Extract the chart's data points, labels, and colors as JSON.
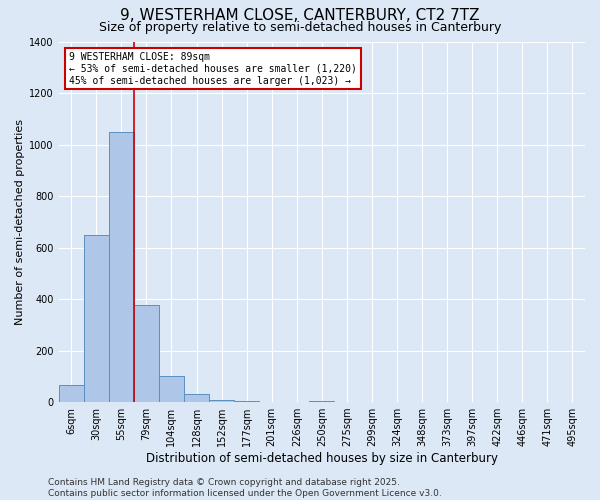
{
  "title": "9, WESTERHAM CLOSE, CANTERBURY, CT2 7TZ",
  "subtitle": "Size of property relative to semi-detached houses in Canterbury",
  "xlabel": "Distribution of semi-detached houses by size in Canterbury",
  "ylabel": "Number of semi-detached properties",
  "categories": [
    "6sqm",
    "30sqm",
    "55sqm",
    "79sqm",
    "104sqm",
    "128sqm",
    "152sqm",
    "177sqm",
    "201sqm",
    "226sqm",
    "250sqm",
    "275sqm",
    "299sqm",
    "324sqm",
    "348sqm",
    "373sqm",
    "397sqm",
    "422sqm",
    "446sqm",
    "471sqm",
    "495sqm"
  ],
  "values": [
    65,
    650,
    1050,
    375,
    100,
    30,
    10,
    5,
    0,
    0,
    5,
    0,
    0,
    0,
    0,
    0,
    0,
    0,
    0,
    0,
    0
  ],
  "bar_color": "#aec6e8",
  "bar_edge_color": "#5a8fc0",
  "background_color": "#dce8f5",
  "property_line_color": "#cc0000",
  "property_line_x": 2.5,
  "annotation_text": "9 WESTERHAM CLOSE: 89sqm\n← 53% of semi-detached houses are smaller (1,220)\n45% of semi-detached houses are larger (1,023) →",
  "annotation_box_color": "#cc0000",
  "ylim": [
    0,
    1400
  ],
  "yticks": [
    0,
    200,
    400,
    600,
    800,
    1000,
    1200,
    1400
  ],
  "footer_line1": "Contains HM Land Registry data © Crown copyright and database right 2025.",
  "footer_line2": "Contains public sector information licensed under the Open Government Licence v3.0.",
  "title_fontsize": 11,
  "subtitle_fontsize": 9,
  "ylabel_fontsize": 8,
  "xlabel_fontsize": 8.5,
  "tick_fontsize": 7,
  "annotation_fontsize": 7,
  "footer_fontsize": 6.5
}
